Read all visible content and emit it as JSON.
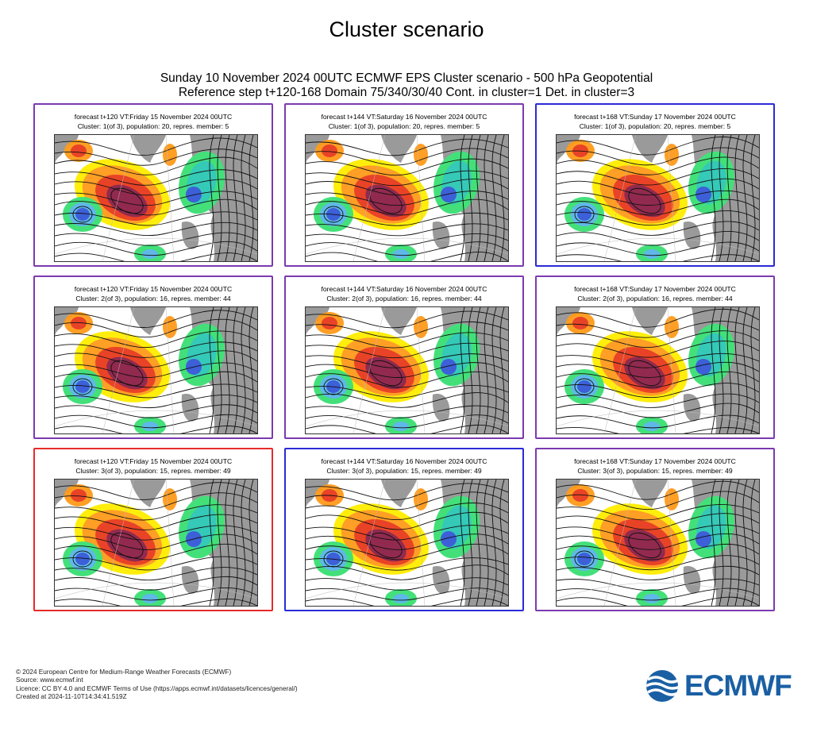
{
  "page_title": "Cluster scenario",
  "subtitle_line1": "Sunday 10 November 2024 00UTC ECMWF EPS Cluster scenario - 500 hPa Geopotential",
  "subtitle_line2": "Reference step t+120-168 Domain 75/340/30/40 Cont. in cluster=1 Det. in cluster=3",
  "colors": {
    "purple_frame": "#7b3ab0",
    "blue_frame": "#2a2ad8",
    "red_frame": "#e62a2a",
    "land": "#9a9a9a",
    "anomaly_warm": [
      "#ffee00",
      "#ff9a1a",
      "#e8391c",
      "#8c1f45"
    ],
    "anomaly_cold": [
      "#43e07a",
      "#35c9b8",
      "#5fb8e8",
      "#3d5fd8",
      "#1a1aa8"
    ],
    "logo": "#1a5fa3"
  },
  "panels": [
    {
      "row": 1,
      "col": 1,
      "frame": "purple",
      "line1": "forecast t+120 VT:Friday 15 November 2024 00UTC",
      "line2": "Cluster: 1(of 3), population: 20, repres. member: 5"
    },
    {
      "row": 1,
      "col": 2,
      "frame": "purple",
      "line1": "forecast t+144 VT:Saturday 16 November 2024 00UTC",
      "line2": "Cluster: 1(of 3), population: 20, repres. member: 5"
    },
    {
      "row": 1,
      "col": 3,
      "frame": "blue",
      "line1": "forecast t+168 VT:Sunday 17 November 2024 00UTC",
      "line2": "Cluster: 1(of 3), population: 20, repres. member: 5"
    },
    {
      "row": 2,
      "col": 1,
      "frame": "purple",
      "line1": "forecast t+120 VT:Friday 15 November 2024 00UTC",
      "line2": "Cluster: 2(of 3), population: 16, repres. member: 44"
    },
    {
      "row": 2,
      "col": 2,
      "frame": "purple",
      "line1": "forecast t+144 VT:Saturday 16 November 2024 00UTC",
      "line2": "Cluster: 2(of 3), population: 16, repres. member: 44"
    },
    {
      "row": 2,
      "col": 3,
      "frame": "purple",
      "line1": "forecast t+168 VT:Sunday 17 November 2024 00UTC",
      "line2": "Cluster: 2(of 3), population: 16, repres. member: 44"
    },
    {
      "row": 3,
      "col": 1,
      "frame": "red",
      "line1": "forecast t+120 VT:Friday 15 November 2024 00UTC",
      "line2": "Cluster: 3(of 3), population: 15, repres. member: 49"
    },
    {
      "row": 3,
      "col": 2,
      "frame": "blue",
      "line1": "forecast t+144 VT:Saturday 16 November 2024 00UTC",
      "line2": "Cluster: 3(of 3), population: 15, repres. member: 49"
    },
    {
      "row": 3,
      "col": 3,
      "frame": "purple",
      "line1": "forecast t+168 VT:Sunday 17 November 2024 00UTC",
      "line2": "Cluster: 3(of 3), population: 15, repres. member: 49"
    }
  ],
  "footer": {
    "line1": "© 2024 European Centre for Medium-Range Weather Forecasts (ECMWF)",
    "line2": "Source: www.ecmwf.int",
    "line3": "Licence: CC BY 4.0 and ECMWF Terms of Use (https://apps.ecmwf.int/datasets/licences/general/)",
    "line4": "Created at 2024-11-10T14:34:41.519Z"
  },
  "logo": {
    "icon": "ecmwf-wave-logo-icon",
    "text": "ECMWF"
  }
}
